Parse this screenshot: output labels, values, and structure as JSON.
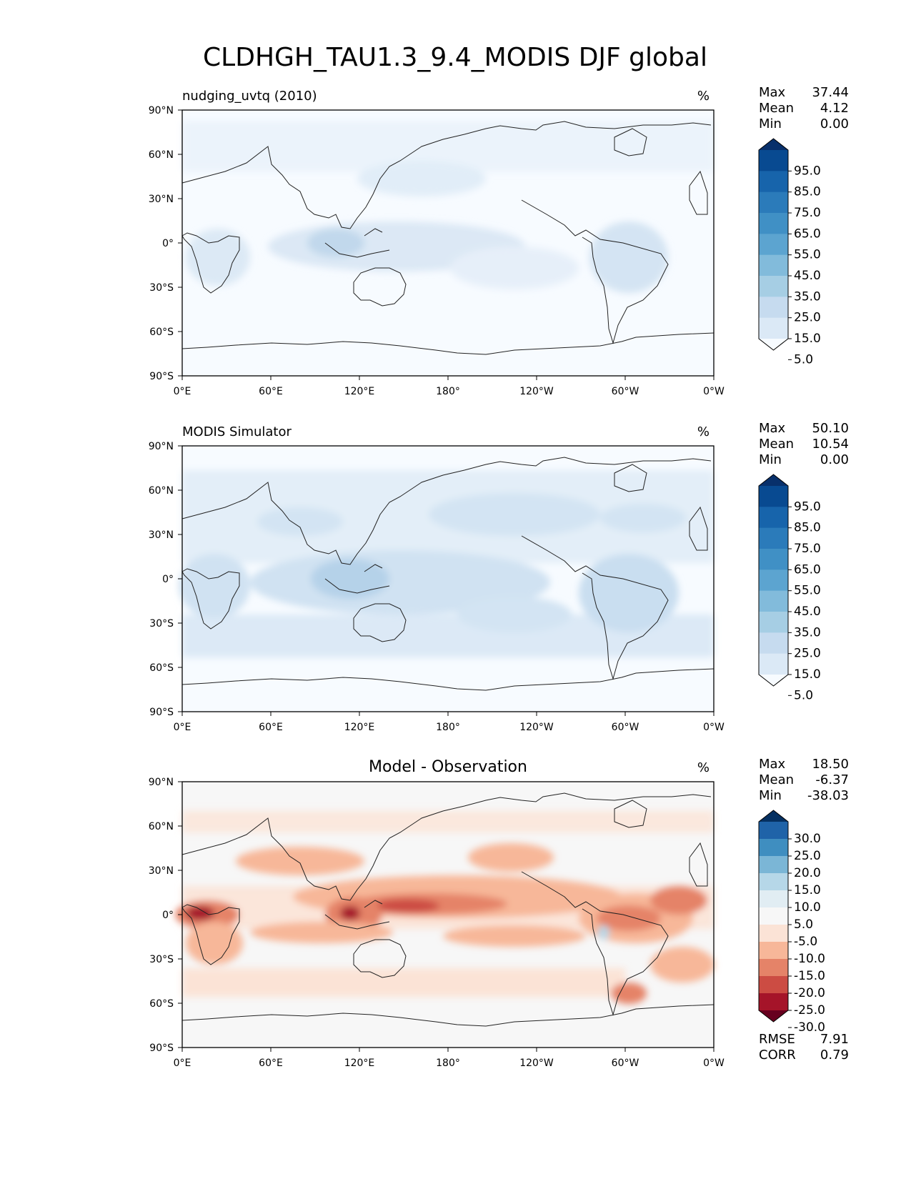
{
  "figure_title": "CLDHGH_TAU1.3_9.4_MODIS DJF global",
  "units": "%",
  "lat_ticks": [
    "90°N",
    "60°N",
    "30°N",
    "0°",
    "30°S",
    "60°S",
    "90°S"
  ],
  "lon_ticks": [
    "0°E",
    "60°E",
    "120°E",
    "180°",
    "120°W",
    "60°W",
    "0°W"
  ],
  "stat_labels": {
    "max": "Max",
    "mean": "Mean",
    "min": "Min",
    "rmse": "RMSE",
    "corr": "CORR"
  },
  "panels": [
    {
      "title": "nudging_uvtq (2010)",
      "stats": {
        "max": "37.44",
        "mean": "4.12",
        "min": "0.00"
      },
      "colorbar": {
        "labels": [
          "95.0",
          "85.0",
          "75.0",
          "65.0",
          "55.0",
          "45.0",
          "35.0",
          "25.0",
          "15.0",
          "5.0"
        ],
        "colors": [
          "#08306b",
          "#084a91",
          "#1764ab",
          "#2b7bba",
          "#4090c5",
          "#5ca4d0",
          "#82bbdb",
          "#a6cee4",
          "#c6dbef",
          "#dbe9f6",
          "#f7fbff"
        ]
      }
    },
    {
      "title": "MODIS Simulator",
      "stats": {
        "max": "50.10",
        "mean": "10.54",
        "min": "0.00"
      },
      "colorbar": {
        "labels": [
          "95.0",
          "85.0",
          "75.0",
          "65.0",
          "55.0",
          "45.0",
          "35.0",
          "25.0",
          "15.0",
          "5.0"
        ],
        "colors": [
          "#08306b",
          "#084a91",
          "#1764ab",
          "#2b7bba",
          "#4090c5",
          "#5ca4d0",
          "#82bbdb",
          "#a6cee4",
          "#c6dbef",
          "#dbe9f6",
          "#f7fbff"
        ]
      }
    },
    {
      "title": "Model - Observation",
      "stats": {
        "max": "18.50",
        "mean": "-6.37",
        "min": "-38.03",
        "rmse": "7.91",
        "corr": "0.79"
      },
      "colorbar": {
        "labels": [
          "30.0",
          "25.0",
          "20.0",
          "15.0",
          "10.0",
          "5.0",
          "-5.0",
          "-10.0",
          "-15.0",
          "-20.0",
          "-25.0",
          "-30.0"
        ],
        "colors": [
          "#053061",
          "#1f63a8",
          "#3f8ec0",
          "#7bb6d6",
          "#b6d7e8",
          "#e1edf3",
          "#f7f7f7",
          "#fbe3d6",
          "#f7b799",
          "#e58368",
          "#cc4c43",
          "#a51429",
          "#67001f"
        ]
      }
    }
  ]
}
